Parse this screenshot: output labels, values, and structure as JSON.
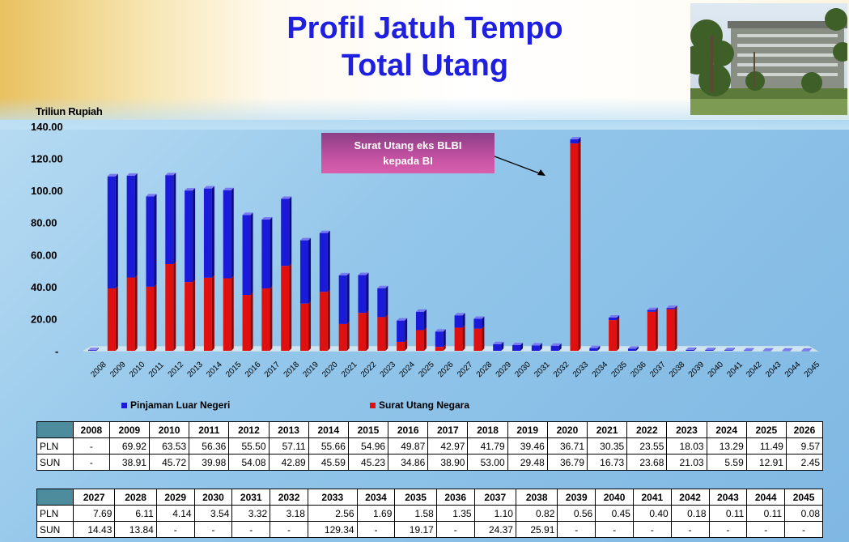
{
  "header": {
    "title_line1": "Profil Jatuh Tempo",
    "title_line2": "Total Utang"
  },
  "colors": {
    "pln": "#1a1ad8",
    "sun": "#e01010",
    "title": "#1f1fe0"
  },
  "chart_data": {
    "type": "bar",
    "stacked": true,
    "ylabel": "Triliun Rupiah",
    "ylim": [
      0,
      140
    ],
    "yticks": [
      "-",
      "20.00",
      "40.00",
      "60.00",
      "80.00",
      "100.00",
      "120.00",
      "140.00"
    ],
    "categories": [
      "2008",
      "2009",
      "2010",
      "2011",
      "2012",
      "2013",
      "2014",
      "2015",
      "2016",
      "2017",
      "2018",
      "2019",
      "2020",
      "2021",
      "2022",
      "2023",
      "2024",
      "2025",
      "2026",
      "2027",
      "2028",
      "2029",
      "2030",
      "2031",
      "2032",
      "2033",
      "2034",
      "2035",
      "2036",
      "2037",
      "2038",
      "2039",
      "2040",
      "2041",
      "2042",
      "2043",
      "2044",
      "2045"
    ],
    "series": [
      {
        "name": "Pinjaman Luar Negeri",
        "color": "#1a1ad8",
        "values": [
          0,
          69.92,
          63.53,
          56.36,
          55.5,
          57.11,
          55.66,
          54.96,
          49.87,
          42.97,
          41.79,
          39.46,
          36.71,
          30.35,
          23.55,
          18.03,
          13.29,
          11.49,
          9.57,
          7.69,
          6.11,
          4.14,
          3.54,
          3.32,
          3.18,
          2.56,
          1.69,
          1.58,
          1.35,
          1.1,
          0.82,
          0.56,
          0.45,
          0.4,
          0.18,
          0.11,
          0.11,
          0.08
        ]
      },
      {
        "name": "Surat Utang Negara",
        "color": "#e01010",
        "values": [
          0,
          38.91,
          45.72,
          39.98,
          54.08,
          42.89,
          45.59,
          45.23,
          34.86,
          38.9,
          53.0,
          29.48,
          36.79,
          16.73,
          23.68,
          21.03,
          5.59,
          12.91,
          2.45,
          14.43,
          13.84,
          0,
          0,
          0,
          0,
          129.34,
          0,
          19.17,
          0,
          24.37,
          25.91,
          0,
          0,
          0,
          0,
          0,
          0,
          0
        ]
      }
    ],
    "annotation": {
      "line1": "Surat Utang eks BLBI",
      "line2": "kepada BI"
    },
    "legend": "bottom"
  },
  "tables": [
    {
      "years": [
        "2008",
        "2009",
        "2010",
        "2011",
        "2012",
        "2013",
        "2014",
        "2015",
        "2016",
        "2017",
        "2018",
        "2019",
        "2020",
        "2021",
        "2022",
        "2023",
        "2024",
        "2025",
        "2026"
      ],
      "rows": [
        {
          "label": "PLN",
          "values": [
            "-",
            "69.92",
            "63.53",
            "56.36",
            "55.50",
            "57.11",
            "55.66",
            "54.96",
            "49.87",
            "42.97",
            "41.79",
            "39.46",
            "36.71",
            "30.35",
            "23.55",
            "18.03",
            "13.29",
            "11.49",
            "9.57"
          ]
        },
        {
          "label": "SUN",
          "values": [
            "-",
            "38.91",
            "45.72",
            "39.98",
            "54.08",
            "42.89",
            "45.59",
            "45.23",
            "34.86",
            "38.90",
            "53.00",
            "29.48",
            "36.79",
            "16.73",
            "23.68",
            "21.03",
            "5.59",
            "12.91",
            "2.45"
          ]
        }
      ]
    },
    {
      "years": [
        "2027",
        "2028",
        "2029",
        "2030",
        "2031",
        "2032",
        "2033",
        "2034",
        "2035",
        "2036",
        "2037",
        "2038",
        "2039",
        "2040",
        "2041",
        "2042",
        "2043",
        "2044",
        "2045"
      ],
      "rows": [
        {
          "label": "PLN",
          "values": [
            "7.69",
            "6.11",
            "4.14",
            "3.54",
            "3.32",
            "3.18",
            "2.56",
            "1.69",
            "1.58",
            "1.35",
            "1.10",
            "0.82",
            "0.56",
            "0.45",
            "0.40",
            "0.18",
            "0.11",
            "0.11",
            "0.08"
          ]
        },
        {
          "label": "SUN",
          "values": [
            "14.43",
            "13.84",
            "-",
            "-",
            "-",
            "-",
            "129.34",
            "-",
            "19.17",
            "-",
            "24.37",
            "25.91",
            "-",
            "-",
            "-",
            "-",
            "-",
            "-",
            "-"
          ]
        }
      ]
    }
  ]
}
